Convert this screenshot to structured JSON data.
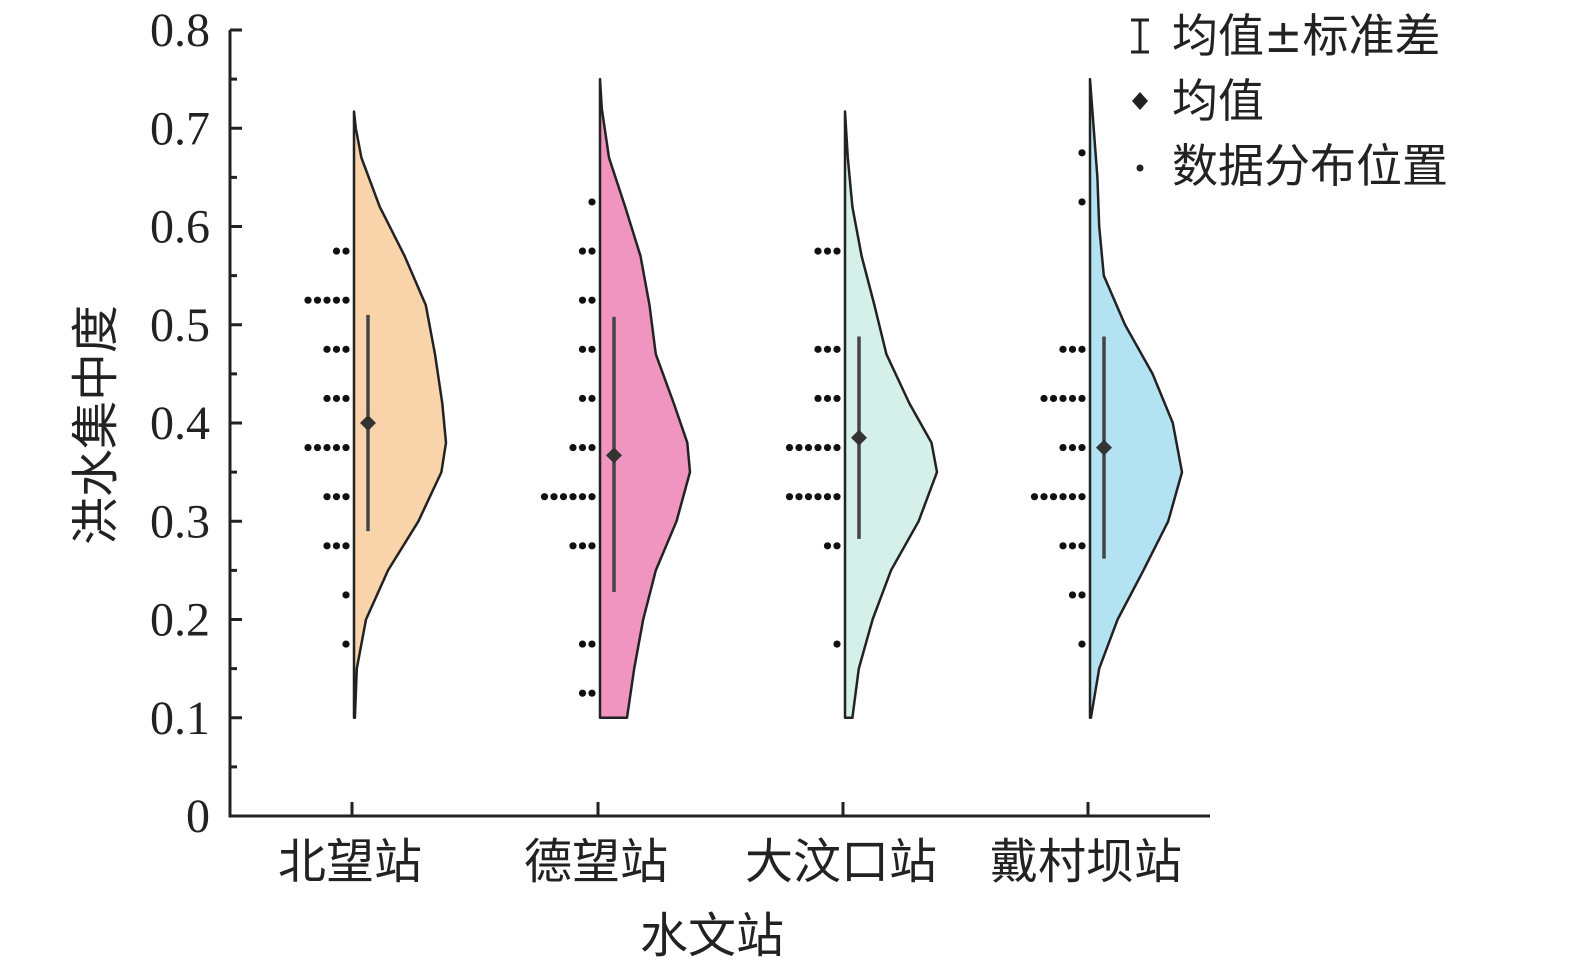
{
  "chart_data": {
    "type": "violin",
    "xlabel": "水文站",
    "ylabel": "洪水集中度",
    "ylim": [
      0,
      0.8
    ],
    "yticks": [
      "0",
      "0.1",
      "0.2",
      "0.3",
      "0.4",
      "0.5",
      "0.6",
      "0.7",
      "0.8"
    ],
    "categories": [
      "北望站",
      "德望站",
      "大汶口站",
      "戴村坝站"
    ],
    "legend": {
      "position": "top-right",
      "items": [
        {
          "marker": "errorbar",
          "label": "均值±标准差"
        },
        {
          "marker": "diamond",
          "label": "均值"
        },
        {
          "marker": "dot",
          "label": "数据分布位置"
        }
      ]
    },
    "series": [
      {
        "category": "北望站",
        "color": "#f9d3aa",
        "mean": 0.4,
        "sd_low": 0.29,
        "sd_high": 0.51,
        "range": [
          0.1,
          0.717
        ],
        "density": [
          [
            0.1,
            0.01
          ],
          [
            0.15,
            0.03
          ],
          [
            0.2,
            0.13
          ],
          [
            0.25,
            0.37
          ],
          [
            0.3,
            0.7
          ],
          [
            0.35,
            0.95
          ],
          [
            0.38,
            1.0
          ],
          [
            0.42,
            0.96
          ],
          [
            0.47,
            0.88
          ],
          [
            0.52,
            0.78
          ],
          [
            0.57,
            0.55
          ],
          [
            0.62,
            0.28
          ],
          [
            0.67,
            0.08
          ],
          [
            0.7,
            0.02
          ],
          [
            0.717,
            0.0
          ]
        ],
        "dots": [
          {
            "y": 0.575,
            "n": 2
          },
          {
            "y": 0.525,
            "n": 5
          },
          {
            "y": 0.475,
            "n": 3
          },
          {
            "y": 0.425,
            "n": 3
          },
          {
            "y": 0.375,
            "n": 5
          },
          {
            "y": 0.325,
            "n": 3
          },
          {
            "y": 0.275,
            "n": 3
          },
          {
            "y": 0.225,
            "n": 1
          },
          {
            "y": 0.175,
            "n": 1
          }
        ]
      },
      {
        "category": "德望站",
        "color": "#ef95c0",
        "mean": 0.367,
        "sd_low": 0.228,
        "sd_high": 0.508,
        "range": [
          0.1,
          0.75
        ],
        "density": [
          [
            0.1,
            0.3
          ],
          [
            0.15,
            0.38
          ],
          [
            0.2,
            0.48
          ],
          [
            0.25,
            0.62
          ],
          [
            0.3,
            0.85
          ],
          [
            0.35,
            1.0
          ],
          [
            0.38,
            0.97
          ],
          [
            0.42,
            0.82
          ],
          [
            0.47,
            0.62
          ],
          [
            0.52,
            0.55
          ],
          [
            0.57,
            0.45
          ],
          [
            0.62,
            0.28
          ],
          [
            0.67,
            0.1
          ],
          [
            0.72,
            0.02
          ],
          [
            0.75,
            0.0
          ]
        ],
        "dots": [
          {
            "y": 0.625,
            "n": 1
          },
          {
            "y": 0.575,
            "n": 2
          },
          {
            "y": 0.525,
            "n": 2
          },
          {
            "y": 0.475,
            "n": 2
          },
          {
            "y": 0.425,
            "n": 2
          },
          {
            "y": 0.375,
            "n": 3
          },
          {
            "y": 0.325,
            "n": 6
          },
          {
            "y": 0.275,
            "n": 3
          },
          {
            "y": 0.175,
            "n": 2
          },
          {
            "y": 0.125,
            "n": 2
          }
        ]
      },
      {
        "category": "大汶口站",
        "color": "#d4f0e8",
        "mean": 0.385,
        "sd_low": 0.282,
        "sd_high": 0.488,
        "range": [
          0.1,
          0.717
        ],
        "density": [
          [
            0.1,
            0.08
          ],
          [
            0.15,
            0.15
          ],
          [
            0.2,
            0.3
          ],
          [
            0.25,
            0.5
          ],
          [
            0.3,
            0.8
          ],
          [
            0.35,
            1.0
          ],
          [
            0.38,
            0.94
          ],
          [
            0.42,
            0.7
          ],
          [
            0.47,
            0.45
          ],
          [
            0.52,
            0.32
          ],
          [
            0.57,
            0.18
          ],
          [
            0.62,
            0.08
          ],
          [
            0.67,
            0.03
          ],
          [
            0.717,
            0.0
          ]
        ],
        "dots": [
          {
            "y": 0.575,
            "n": 3
          },
          {
            "y": 0.475,
            "n": 3
          },
          {
            "y": 0.425,
            "n": 3
          },
          {
            "y": 0.375,
            "n": 6
          },
          {
            "y": 0.325,
            "n": 6
          },
          {
            "y": 0.275,
            "n": 2
          },
          {
            "y": 0.175,
            "n": 1
          }
        ]
      },
      {
        "category": "戴村坝站",
        "color": "#b3e2f2",
        "mean": 0.375,
        "sd_low": 0.262,
        "sd_high": 0.488,
        "range": [
          0.1,
          0.75
        ],
        "density": [
          [
            0.1,
            0.01
          ],
          [
            0.15,
            0.1
          ],
          [
            0.2,
            0.3
          ],
          [
            0.25,
            0.58
          ],
          [
            0.3,
            0.85
          ],
          [
            0.35,
            1.0
          ],
          [
            0.4,
            0.9
          ],
          [
            0.45,
            0.68
          ],
          [
            0.5,
            0.38
          ],
          [
            0.55,
            0.15
          ],
          [
            0.6,
            0.1
          ],
          [
            0.65,
            0.08
          ],
          [
            0.7,
            0.04
          ],
          [
            0.75,
            0.0
          ]
        ],
        "dots": [
          {
            "y": 0.675,
            "n": 1
          },
          {
            "y": 0.625,
            "n": 1
          },
          {
            "y": 0.475,
            "n": 3
          },
          {
            "y": 0.425,
            "n": 5
          },
          {
            "y": 0.375,
            "n": 3
          },
          {
            "y": 0.325,
            "n": 6
          },
          {
            "y": 0.275,
            "n": 3
          },
          {
            "y": 0.225,
            "n": 2
          },
          {
            "y": 0.175,
            "n": 1
          }
        ]
      }
    ]
  }
}
